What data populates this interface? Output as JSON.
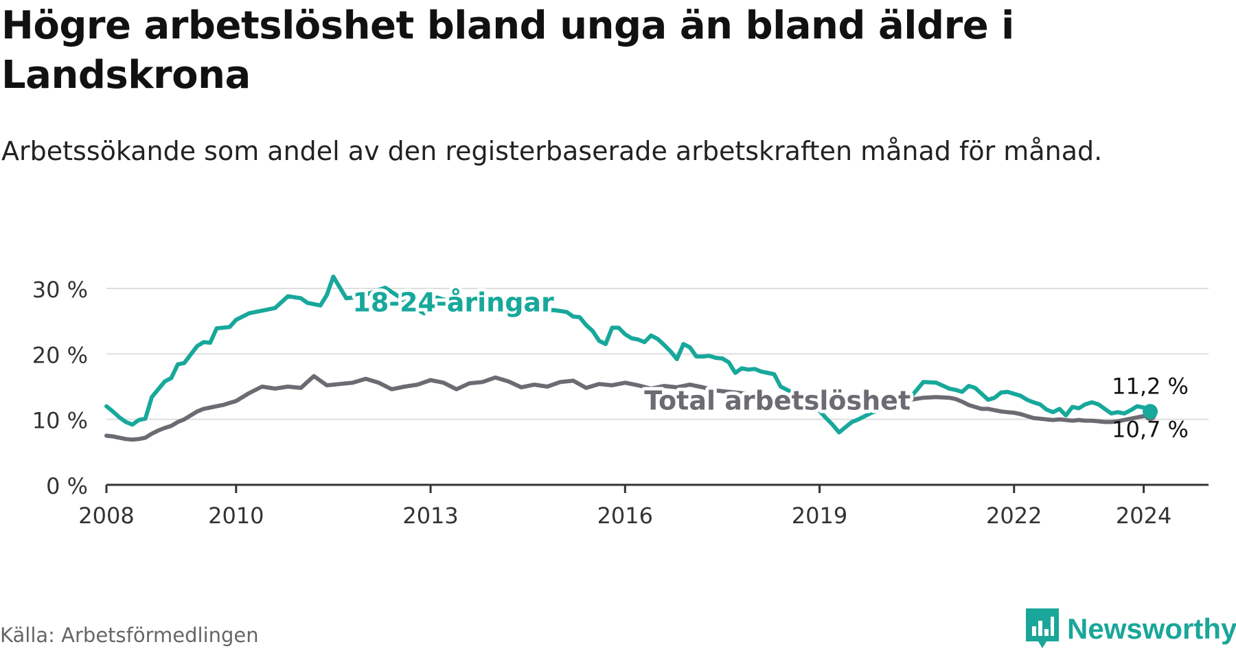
{
  "title": "Högre arbetslöshet bland unga än bland äldre i Landskrona",
  "subtitle": "Arbetssökande som andel av den registerbaserade arbetskraften månad för månad.",
  "source": "Källa: Arbetsförmedlingen",
  "brand": "Newsworthy",
  "colors": {
    "youth": "#17a89b",
    "total": "#6d6a73",
    "brand": "#1aa699"
  },
  "chart_data": {
    "type": "line",
    "title": "Högre arbetslöshet bland unga än bland äldre i Landskrona",
    "xlabel": "",
    "ylabel": "",
    "ylim": [
      0,
      30
    ],
    "xlim": [
      2008.0,
      2025.0
    ],
    "yticks": [
      0,
      10,
      20,
      30
    ],
    "ytick_labels": [
      "0 %",
      "10 %",
      "20 %",
      "30 %"
    ],
    "xticks": [
      2008,
      2010,
      2013,
      2016,
      2019,
      2022,
      2024
    ],
    "xtick_labels": [
      "2008",
      "2010",
      "2013",
      "2016",
      "2019",
      "2022",
      "2024"
    ],
    "grid": true,
    "legend": "inline labels",
    "series": [
      {
        "name": "18-24-åringar",
        "color": "#17a89b",
        "end_label": "11,2 %",
        "x": [
          2008.0,
          2008.1,
          2008.2,
          2008.3,
          2008.4,
          2008.5,
          2008.6,
          2008.7,
          2008.8,
          2008.9,
          2009.0,
          2009.1,
          2009.2,
          2009.3,
          2009.4,
          2009.5,
          2009.6,
          2009.7,
          2009.8,
          2009.9,
          2010.0,
          2010.2,
          2010.4,
          2010.6,
          2010.8,
          2011.0,
          2011.1,
          2011.2,
          2011.3,
          2011.4,
          2011.5,
          2011.7,
          2011.9,
          2012.1,
          2012.3,
          2012.5,
          2012.7,
          2012.9,
          2013.1,
          2013.3,
          2013.5,
          2013.7,
          2013.9,
          2014.1,
          2014.3,
          2014.5,
          2014.7,
          2014.9,
          2015.1,
          2015.2,
          2015.3,
          2015.4,
          2015.5,
          2015.6,
          2015.7,
          2015.8,
          2015.9,
          2016.0,
          2016.1,
          2016.2,
          2016.3,
          2016.4,
          2016.5,
          2016.6,
          2016.7,
          2016.8,
          2016.9,
          2017.0,
          2017.1,
          2017.2,
          2017.3,
          2017.4,
          2017.5,
          2017.6,
          2017.7,
          2017.8,
          2017.9,
          2018.0,
          2018.1,
          2018.2,
          2018.3,
          2018.4,
          2018.6,
          2018.8,
          2019.0,
          2019.1,
          2019.2,
          2019.3,
          2019.4,
          2019.5,
          2019.6,
          2019.8,
          2020.0,
          2020.2,
          2020.4,
          2020.6,
          2020.8,
          2021.0,
          2021.1,
          2021.2,
          2021.3,
          2021.4,
          2021.5,
          2021.6,
          2021.7,
          2021.8,
          2021.9,
          2022.0,
          2022.1,
          2022.2,
          2022.3,
          2022.4,
          2022.5,
          2022.6,
          2022.7,
          2022.8,
          2022.9,
          2023.0,
          2023.1,
          2023.2,
          2023.3,
          2023.4,
          2023.5,
          2023.6,
          2023.7,
          2023.8,
          2023.9,
          2024.0,
          2024.1
        ],
        "values": [
          12.0,
          11.2,
          10.3,
          9.6,
          9.2,
          9.9,
          10.1,
          13.4,
          14.6,
          15.8,
          16.3,
          18.4,
          18.6,
          19.9,
          21.2,
          21.8,
          21.7,
          23.9,
          24.0,
          24.1,
          25.2,
          26.2,
          26.6,
          27.0,
          28.8,
          28.5,
          27.8,
          27.6,
          27.4,
          29.0,
          31.8,
          28.5,
          28.7,
          29.4,
          30.1,
          28.8,
          27.3,
          26.2,
          28.6,
          28.0,
          27.9,
          28.1,
          27.6,
          27.4,
          27.2,
          26.9,
          26.5,
          26.7,
          26.4,
          25.7,
          25.6,
          24.4,
          23.5,
          22.0,
          21.5,
          24.0,
          24.0,
          23.0,
          22.4,
          22.2,
          21.8,
          22.8,
          22.3,
          21.4,
          20.4,
          19.2,
          21.5,
          21.0,
          19.6,
          19.6,
          19.7,
          19.4,
          19.3,
          18.7,
          17.1,
          17.8,
          17.6,
          17.7,
          17.3,
          17.1,
          16.9,
          15.0,
          14.0,
          12.7,
          11.3,
          10.2,
          9.2,
          8.0,
          8.8,
          9.6,
          10.0,
          11.0,
          11.7,
          12.4,
          13.3,
          15.7,
          15.6,
          14.7,
          14.5,
          14.2,
          15.1,
          14.8,
          13.9,
          13.0,
          13.3,
          14.1,
          14.2,
          13.9,
          13.6,
          13.0,
          12.6,
          12.3,
          11.5,
          11.1,
          11.6,
          10.6,
          11.9,
          11.7,
          12.3,
          12.6,
          12.3,
          11.6,
          10.9,
          11.1,
          10.9,
          11.4,
          12.0,
          11.8,
          11.2
        ]
      },
      {
        "name": "Total arbetslöshet",
        "color": "#6d6a73",
        "end_label": "10,7 %",
        "x": [
          2008.0,
          2008.1,
          2008.2,
          2008.3,
          2008.4,
          2008.5,
          2008.6,
          2008.7,
          2008.8,
          2008.9,
          2009.0,
          2009.1,
          2009.2,
          2009.3,
          2009.4,
          2009.5,
          2009.6,
          2009.7,
          2009.8,
          2009.9,
          2010.0,
          2010.2,
          2010.4,
          2010.6,
          2010.8,
          2011.0,
          2011.2,
          2011.4,
          2011.6,
          2011.8,
          2012.0,
          2012.2,
          2012.4,
          2012.6,
          2012.8,
          2013.0,
          2013.2,
          2013.4,
          2013.6,
          2013.8,
          2014.0,
          2014.2,
          2014.4,
          2014.6,
          2014.8,
          2015.0,
          2015.2,
          2015.4,
          2015.6,
          2015.8,
          2016.0,
          2016.2,
          2016.4,
          2016.6,
          2016.8,
          2017.0,
          2017.2,
          2017.4,
          2017.6,
          2017.8,
          2018.0,
          2018.2,
          2018.4,
          2018.6,
          2018.8,
          2019.0,
          2019.2,
          2019.4,
          2019.6,
          2019.8,
          2020.0,
          2020.2,
          2020.4,
          2020.6,
          2020.8,
          2021.0,
          2021.1,
          2021.2,
          2021.3,
          2021.4,
          2021.5,
          2021.6,
          2021.7,
          2021.8,
          2021.9,
          2022.0,
          2022.1,
          2022.2,
          2022.3,
          2022.4,
          2022.5,
          2022.6,
          2022.7,
          2022.8,
          2022.9,
          2023.0,
          2023.1,
          2023.2,
          2023.3,
          2023.4,
          2023.5,
          2023.6,
          2023.7,
          2023.8,
          2023.9,
          2024.0,
          2024.1
        ],
        "values": [
          7.5,
          7.4,
          7.2,
          7.0,
          6.9,
          7.0,
          7.2,
          7.8,
          8.3,
          8.7,
          9.0,
          9.6,
          10.0,
          10.6,
          11.2,
          11.6,
          11.8,
          12.0,
          12.2,
          12.5,
          12.8,
          14.0,
          15.0,
          14.7,
          15.0,
          14.8,
          16.6,
          15.2,
          15.4,
          15.6,
          16.2,
          15.6,
          14.6,
          15.0,
          15.3,
          16.0,
          15.6,
          14.6,
          15.5,
          15.7,
          16.4,
          15.8,
          14.9,
          15.3,
          15.0,
          15.7,
          15.9,
          14.8,
          15.4,
          15.2,
          15.6,
          15.2,
          14.7,
          15.1,
          14.9,
          15.3,
          14.9,
          14.4,
          14.2,
          14.0,
          13.6,
          13.0,
          12.6,
          12.2,
          12.0,
          11.7,
          11.6,
          11.7,
          11.8,
          12.0,
          12.4,
          12.8,
          13.0,
          13.3,
          13.4,
          13.3,
          13.1,
          12.7,
          12.2,
          11.9,
          11.6,
          11.6,
          11.4,
          11.2,
          11.1,
          11.0,
          10.8,
          10.5,
          10.2,
          10.1,
          10.0,
          9.9,
          10.0,
          9.9,
          9.8,
          9.9,
          9.8,
          9.8,
          9.7,
          9.6,
          9.6,
          9.7,
          9.9,
          10.1,
          10.3,
          10.5,
          10.7
        ]
      }
    ]
  }
}
